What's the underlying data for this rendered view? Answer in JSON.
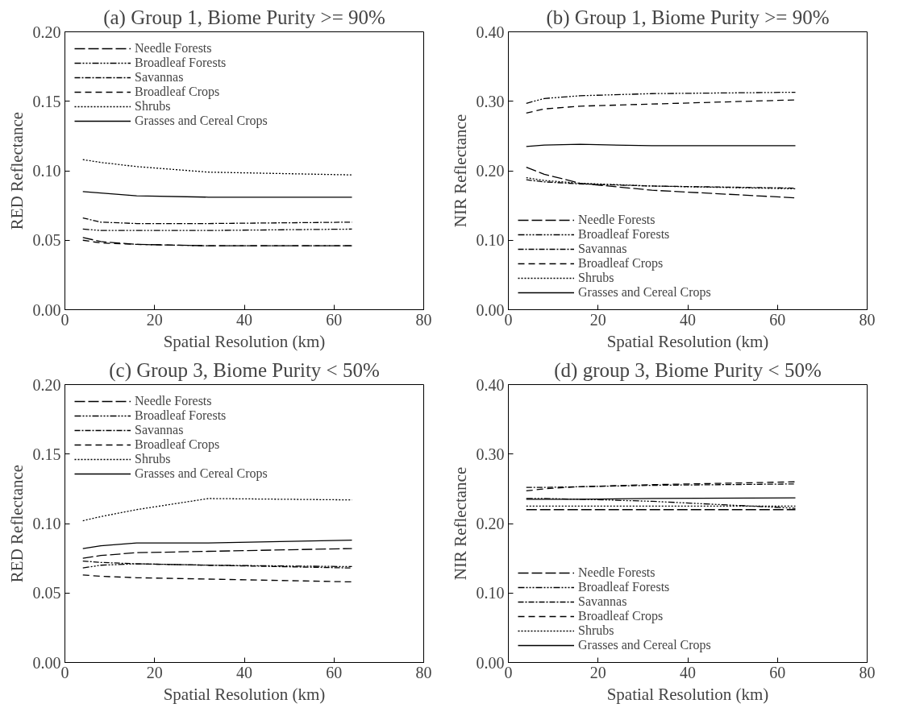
{
  "chart_data": [
    {
      "type": "line",
      "title": "(a) Group 1, Biome Purity >= 90%",
      "xlabel": "Spatial Resolution (km)",
      "ylabel": "RED Reflectance",
      "xlim": [
        0,
        80
      ],
      "xticks": [
        0,
        20,
        40,
        60,
        80
      ],
      "ylim": [
        0,
        0.2
      ],
      "yticks": [
        {
          "value": 0,
          "label": "0.00"
        },
        {
          "value": 0.05,
          "label": "0.05"
        },
        {
          "value": 0.1,
          "label": "0.10"
        },
        {
          "value": 0.15,
          "label": "0.15"
        },
        {
          "value": 0.2,
          "label": "0.20"
        }
      ],
      "grid": false,
      "legend": "top left",
      "x": [
        4,
        8,
        16,
        32,
        64
      ],
      "series": [
        {
          "name": "Needle Forests",
          "color": "#000000",
          "line_style": "longdash",
          "values": [
            0.052,
            0.049,
            0.047,
            0.046,
            0.046
          ]
        },
        {
          "name": "Broadleaf Forests",
          "color": "#000000",
          "line_style": "dashdotdot",
          "values": [
            0.058,
            0.057,
            0.057,
            0.057,
            0.058
          ]
        },
        {
          "name": "Savannas",
          "color": "#000000",
          "line_style": "dashdot",
          "values": [
            0.066,
            0.063,
            0.062,
            0.062,
            0.063
          ]
        },
        {
          "name": "Broadleaf Crops",
          "color": "#000000",
          "line_style": "dashed",
          "values": [
            0.05,
            0.048,
            0.047,
            0.046,
            0.046
          ]
        },
        {
          "name": "Shrubs",
          "color": "#000000",
          "line_style": "dotted",
          "values": [
            0.108,
            0.106,
            0.103,
            0.099,
            0.097
          ]
        },
        {
          "name": "Grasses and Cereal Crops",
          "color": "#000000",
          "line_style": "solid",
          "values": [
            0.085,
            0.084,
            0.082,
            0.081,
            0.081
          ]
        }
      ]
    },
    {
      "type": "line",
      "title": "(b) Group 1, Biome Purity >= 90%",
      "xlabel": "Spatial Resolution (km)",
      "ylabel": "NIR Reflectance",
      "xlim": [
        0,
        80
      ],
      "xticks": [
        0,
        20,
        40,
        60,
        80
      ],
      "ylim": [
        0,
        0.4
      ],
      "yticks": [
        {
          "value": 0,
          "label": "0.00"
        },
        {
          "value": 0.1,
          "label": "0.10"
        },
        {
          "value": 0.2,
          "label": "0.20"
        },
        {
          "value": 0.3,
          "label": "0.30"
        },
        {
          "value": 0.4,
          "label": "0.40"
        }
      ],
      "grid": false,
      "legend": "bottom left",
      "x": [
        4,
        8,
        16,
        32,
        64
      ],
      "series": [
        {
          "name": "Needle Forests",
          "color": "#000000",
          "line_style": "longdash",
          "values": [
            0.205,
            0.195,
            0.182,
            0.172,
            0.161
          ]
        },
        {
          "name": "Broadleaf Forests",
          "color": "#000000",
          "line_style": "dashdotdot",
          "values": [
            0.297,
            0.304,
            0.308,
            0.311,
            0.313
          ]
        },
        {
          "name": "Savannas",
          "color": "#000000",
          "line_style": "dashdot",
          "values": [
            0.187,
            0.184,
            0.181,
            0.178,
            0.175
          ]
        },
        {
          "name": "Broadleaf Crops",
          "color": "#000000",
          "line_style": "dashed",
          "values": [
            0.283,
            0.289,
            0.293,
            0.296,
            0.302
          ]
        },
        {
          "name": "Shrubs",
          "color": "#000000",
          "line_style": "dotted",
          "values": [
            0.19,
            0.186,
            0.182,
            0.178,
            0.174
          ]
        },
        {
          "name": "Grasses and Cereal Crops",
          "color": "#000000",
          "line_style": "solid",
          "values": [
            0.235,
            0.237,
            0.238,
            0.236,
            0.236
          ]
        }
      ]
    },
    {
      "type": "line",
      "title": "(c) Group 3, Biome Purity < 50%",
      "xlabel": "Spatial Resolution (km)",
      "ylabel": "RED Reflectance",
      "xlim": [
        0,
        80
      ],
      "xticks": [
        0,
        20,
        40,
        60,
        80
      ],
      "ylim": [
        0,
        0.2
      ],
      "yticks": [
        {
          "value": 0,
          "label": "0.00"
        },
        {
          "value": 0.05,
          "label": "0.05"
        },
        {
          "value": 0.1,
          "label": "0.10"
        },
        {
          "value": 0.15,
          "label": "0.15"
        },
        {
          "value": 0.2,
          "label": "0.20"
        }
      ],
      "grid": false,
      "legend": "top left",
      "x": [
        4,
        8,
        16,
        32,
        64
      ],
      "series": [
        {
          "name": "Needle Forests",
          "color": "#000000",
          "line_style": "longdash",
          "values": [
            0.075,
            0.077,
            0.079,
            0.08,
            0.082
          ]
        },
        {
          "name": "Broadleaf Forests",
          "color": "#000000",
          "line_style": "dashdotdot",
          "values": [
            0.068,
            0.07,
            0.071,
            0.07,
            0.069
          ]
        },
        {
          "name": "Savannas",
          "color": "#000000",
          "line_style": "dashdot",
          "values": [
            0.073,
            0.072,
            0.071,
            0.07,
            0.068
          ]
        },
        {
          "name": "Broadleaf Crops",
          "color": "#000000",
          "line_style": "dashed",
          "values": [
            0.063,
            0.062,
            0.061,
            0.06,
            0.058
          ]
        },
        {
          "name": "Shrubs",
          "color": "#000000",
          "line_style": "dotted",
          "values": [
            0.102,
            0.105,
            0.11,
            0.118,
            0.117
          ]
        },
        {
          "name": "Grasses and Cereal Crops",
          "color": "#000000",
          "line_style": "solid",
          "values": [
            0.082,
            0.084,
            0.086,
            0.086,
            0.088
          ]
        }
      ]
    },
    {
      "type": "line",
      "title": "(d) group 3, Biome Purity < 50%",
      "xlabel": "Spatial Resolution (km)",
      "ylabel": "NIR Reflectance",
      "xlim": [
        0,
        80
      ],
      "xticks": [
        0,
        20,
        40,
        60,
        80
      ],
      "ylim": [
        0,
        0.4
      ],
      "yticks": [
        {
          "value": 0,
          "label": "0.00"
        },
        {
          "value": 0.1,
          "label": "0.10"
        },
        {
          "value": 0.2,
          "label": "0.20"
        },
        {
          "value": 0.3,
          "label": "0.30"
        },
        {
          "value": 0.4,
          "label": "0.40"
        }
      ],
      "grid": false,
      "legend": "bottom left",
      "x": [
        4,
        8,
        16,
        32,
        64
      ],
      "series": [
        {
          "name": "Needle Forests",
          "color": "#000000",
          "line_style": "longdash",
          "values": [
            0.22,
            0.22,
            0.22,
            0.22,
            0.22
          ]
        },
        {
          "name": "Broadleaf Forests",
          "color": "#000000",
          "line_style": "dashdotdot",
          "values": [
            0.236,
            0.236,
            0.235,
            0.232,
            0.222
          ]
        },
        {
          "name": "Savannas",
          "color": "#000000",
          "line_style": "dashdot",
          "values": [
            0.252,
            0.252,
            0.253,
            0.255,
            0.257
          ]
        },
        {
          "name": "Broadleaf Crops",
          "color": "#000000",
          "line_style": "dashed",
          "values": [
            0.247,
            0.25,
            0.253,
            0.256,
            0.26
          ]
        },
        {
          "name": "Shrubs",
          "color": "#000000",
          "line_style": "dotted",
          "values": [
            0.225,
            0.225,
            0.225,
            0.225,
            0.225
          ]
        },
        {
          "name": "Grasses and Cereal Crops",
          "color": "#000000",
          "line_style": "solid",
          "values": [
            0.235,
            0.235,
            0.235,
            0.236,
            0.237
          ]
        }
      ]
    }
  ]
}
